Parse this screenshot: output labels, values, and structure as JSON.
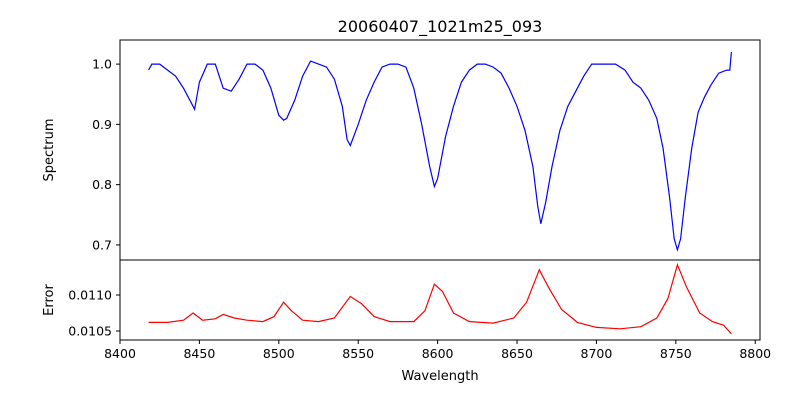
{
  "chart_data": [
    {
      "type": "line",
      "title": "20060407_1021m25_093",
      "xlabel": "",
      "ylabel": "Spectrum",
      "xlim": [
        8400,
        8803
      ],
      "ylim": [
        0.675,
        1.04
      ],
      "yticks": [
        0.7,
        0.8,
        0.9,
        1.0
      ],
      "ytick_labels": [
        "0.7",
        "0.8",
        "0.9",
        "1.0"
      ],
      "grid": false,
      "series": [
        {
          "name": "Spectrum",
          "color": "#0000ff",
          "x": [
            8418,
            8420,
            8425,
            8430,
            8435,
            8440,
            8445,
            8447,
            8450,
            8455,
            8460,
            8465,
            8470,
            8475,
            8480,
            8485,
            8490,
            8495,
            8500,
            8503,
            8505,
            8510,
            8515,
            8520,
            8525,
            8530,
            8535,
            8540,
            8543,
            8545,
            8550,
            8555,
            8560,
            8565,
            8570,
            8575,
            8580,
            8585,
            8590,
            8595,
            8598,
            8600,
            8605,
            8610,
            8615,
            8620,
            8625,
            8630,
            8635,
            8640,
            8645,
            8650,
            8655,
            8660,
            8663,
            8665,
            8668,
            8672,
            8677,
            8682,
            8687,
            8692,
            8697,
            8705,
            8712,
            8718,
            8723,
            8728,
            8733,
            8738,
            8742,
            8746,
            8749,
            8751,
            8753,
            8756,
            8760,
            8764,
            8768,
            8772,
            8777,
            8782,
            8784,
            8785
          ],
          "y": [
            0.99,
            1.0,
            1.0,
            0.99,
            0.98,
            0.96,
            0.935,
            0.925,
            0.97,
            1.0,
            1.0,
            0.96,
            0.955,
            0.975,
            1.0,
            1.0,
            0.99,
            0.96,
            0.915,
            0.907,
            0.91,
            0.94,
            0.98,
            1.005,
            1.0,
            0.995,
            0.975,
            0.93,
            0.875,
            0.865,
            0.9,
            0.94,
            0.97,
            0.995,
            1.0,
            1.0,
            0.995,
            0.96,
            0.9,
            0.83,
            0.797,
            0.81,
            0.88,
            0.93,
            0.97,
            0.99,
            1.0,
            1.0,
            0.995,
            0.985,
            0.96,
            0.93,
            0.89,
            0.83,
            0.765,
            0.735,
            0.77,
            0.83,
            0.89,
            0.93,
            0.955,
            0.98,
            1.0,
            1.0,
            1.0,
            0.99,
            0.97,
            0.96,
            0.94,
            0.91,
            0.86,
            0.78,
            0.71,
            0.692,
            0.71,
            0.78,
            0.86,
            0.92,
            0.945,
            0.965,
            0.985,
            0.99,
            0.99,
            1.02
          ]
        }
      ]
    },
    {
      "type": "line",
      "title": "",
      "xlabel": "Wavelength",
      "ylabel": "Error",
      "xlim": [
        8400,
        8803
      ],
      "ylim": [
        0.010375,
        0.011486
      ],
      "xticks": [
        8400,
        8450,
        8500,
        8550,
        8600,
        8650,
        8700,
        8750,
        8800
      ],
      "xtick_labels": [
        "8400",
        "8450",
        "8500",
        "8550",
        "8600",
        "8650",
        "8700",
        "8750",
        "8800"
      ],
      "yticks": [
        0.0105,
        0.011
      ],
      "ytick_labels": [
        "0.0105",
        "0.0110"
      ],
      "grid": false,
      "series": [
        {
          "name": "Error",
          "color": "#ff0000",
          "x": [
            8418,
            8430,
            8440,
            8446,
            8452,
            8460,
            8465,
            8472,
            8480,
            8490,
            8497,
            8503,
            8508,
            8515,
            8525,
            8535,
            8545,
            8552,
            8560,
            8570,
            8585,
            8592,
            8598,
            8603,
            8610,
            8620,
            8635,
            8648,
            8656,
            8664,
            8670,
            8678,
            8688,
            8700,
            8715,
            8728,
            8738,
            8745,
            8751,
            8757,
            8765,
            8773,
            8780,
            8785
          ],
          "y": [
            0.01062,
            0.01062,
            0.01065,
            0.01075,
            0.01065,
            0.01067,
            0.01073,
            0.01068,
            0.01065,
            0.01063,
            0.0107,
            0.0109,
            0.01078,
            0.01065,
            0.01063,
            0.01068,
            0.01098,
            0.01088,
            0.0107,
            0.01063,
            0.01063,
            0.01078,
            0.01115,
            0.01105,
            0.01075,
            0.01063,
            0.01061,
            0.01068,
            0.0109,
            0.01135,
            0.0111,
            0.0108,
            0.01062,
            0.01055,
            0.01053,
            0.01056,
            0.01068,
            0.01095,
            0.01142,
            0.0111,
            0.01075,
            0.01063,
            0.01058,
            0.01046
          ]
        }
      ]
    }
  ]
}
